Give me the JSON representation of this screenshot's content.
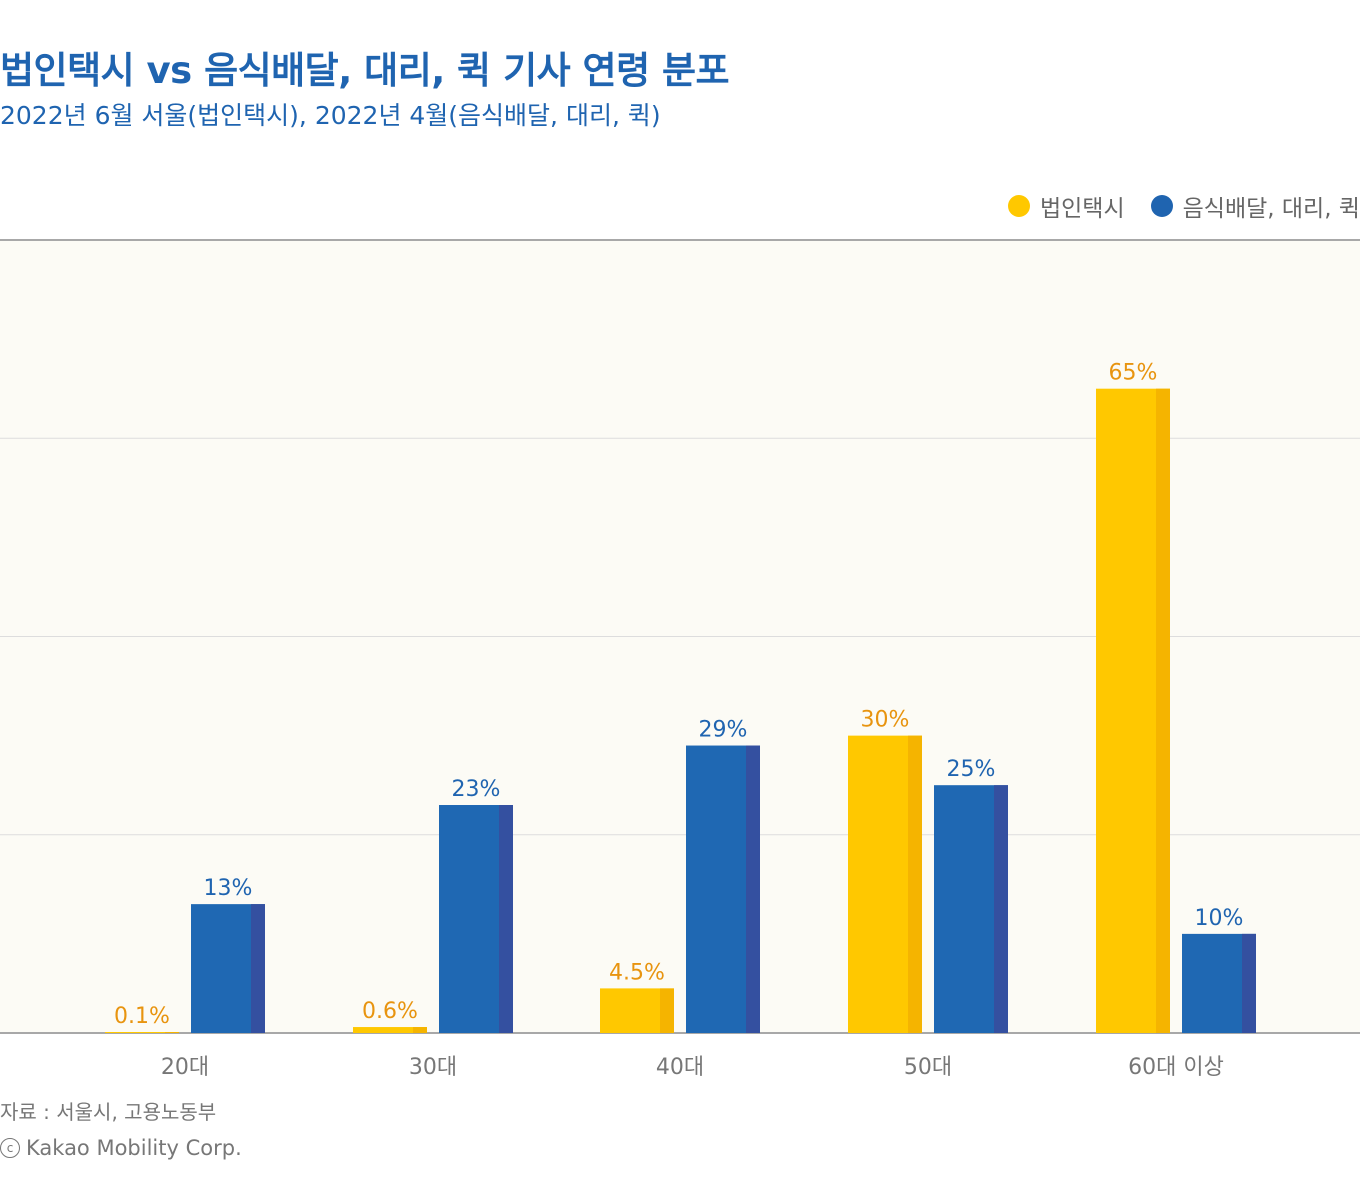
{
  "title": "법인택시 vs 음식배달, 대리, 퀵 기사 연령 분포",
  "subtitle": "2022년 6월 서울(법인택시), 2022년 4월(음식배달, 대리, 퀵)",
  "legend": [
    {
      "label": "법인택시",
      "color": "#ffc800"
    },
    {
      "label": "음식배달, 대리, 퀵",
      "color": "#1f64b0"
    }
  ],
  "source": "자료 : 서울시, 고용노동부",
  "copyright": {
    "icon": "copyright-circle-c-icon",
    "symbol": "c",
    "text": "Kakao Mobility Corp."
  },
  "colors": {
    "plot_background": "#fcfbf5",
    "taxi": "#ffc800",
    "taxi_side": "#f5b400",
    "taxi_label": "#e8940f",
    "delivery": "#1f68b3",
    "delivery_side": "#3450a0",
    "delivery_label": "#1f64b0"
  },
  "chart_data": {
    "type": "bar",
    "categories": [
      "20대",
      "30대",
      "40대",
      "50대",
      "60대 이상"
    ],
    "series": [
      {
        "name": "법인택시",
        "values": [
          0.1,
          0.6,
          4.5,
          30,
          65
        ],
        "labels": [
          "0.1%",
          "0.6%",
          "4.5%",
          "30%",
          "65%"
        ]
      },
      {
        "name": "음식배달, 대리, 퀵",
        "values": [
          13,
          23,
          29,
          25,
          10
        ],
        "labels": [
          "13%",
          "23%",
          "29%",
          "25%",
          "10%"
        ]
      }
    ],
    "ylim": [
      0,
      80
    ],
    "grid": true,
    "legend_position": "top-right",
    "xlabel": "",
    "ylabel": ""
  }
}
